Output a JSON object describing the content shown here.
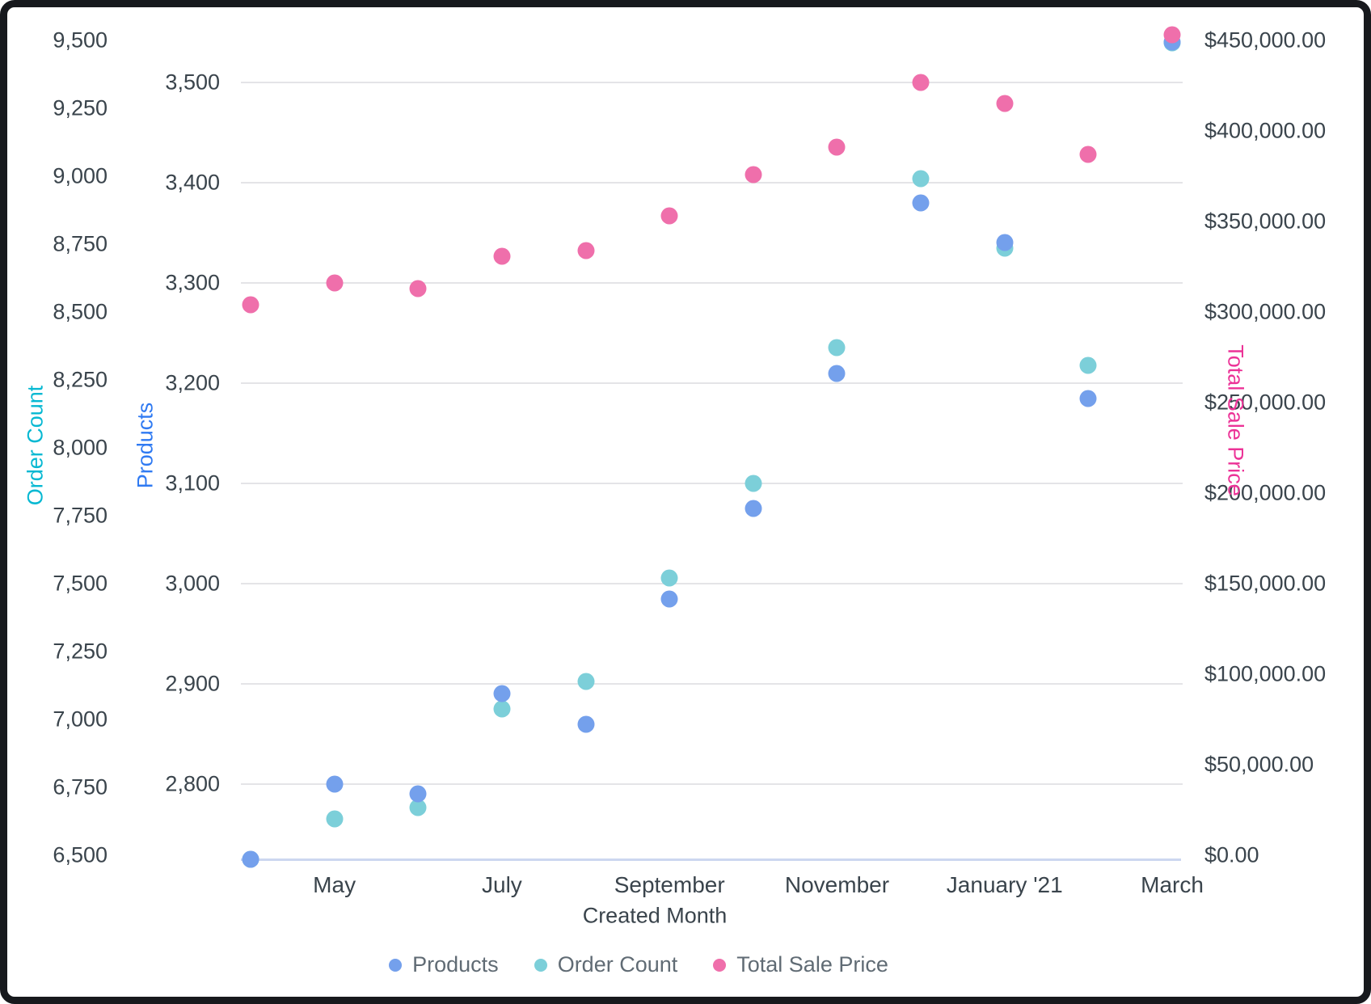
{
  "chart_data": {
    "type": "scatter",
    "x_axis": {
      "title": "Created Month",
      "tick_labels": [
        "May",
        "July",
        "September",
        "November",
        "January '21",
        "March"
      ],
      "tick_positions": [
        2,
        4,
        6,
        8,
        10,
        12
      ],
      "n_points": 12
    },
    "axes": {
      "order_count": {
        "title": "Order Count",
        "title_color": "#06b8d2",
        "tick_labels": [
          "9,500",
          "9,250",
          "9,000",
          "8,750",
          "8,500",
          "8,250",
          "8,000",
          "7,750",
          "7,500",
          "7,250",
          "7,000",
          "6,750",
          "6,500"
        ],
        "tick_values": [
          9500,
          9250,
          9000,
          8750,
          8500,
          8250,
          8000,
          7750,
          7500,
          7250,
          7000,
          6750,
          6500
        ],
        "range": [
          6500,
          9500
        ],
        "side": "outer-left"
      },
      "products": {
        "title": "Products",
        "title_color": "#2f7af2",
        "tick_labels": [
          "3,500",
          "3,400",
          "3,300",
          "3,200",
          "3,100",
          "3,000",
          "2,900",
          "2,800"
        ],
        "tick_values": [
          3500,
          3400,
          3300,
          3200,
          3100,
          3000,
          2900,
          2800
        ],
        "range": [
          2720,
          3545
        ],
        "gridlines": true,
        "side": "inner-left"
      },
      "total_sale_price": {
        "title": "Total Sale Price",
        "title_color": "#ec3397",
        "tick_labels": [
          "$450,000.00",
          "$400,000.00",
          "$350,000.00",
          "$300,000.00",
          "$250,000.00",
          "$200,000.00",
          "$150,000.00",
          "$100,000.00",
          "$50,000.00",
          "$0.00"
        ],
        "tick_values": [
          450000,
          400000,
          350000,
          300000,
          250000,
          200000,
          150000,
          100000,
          50000,
          0
        ],
        "range": [
          0,
          455000
        ],
        "side": "right"
      }
    },
    "series": [
      {
        "name": "Products",
        "axis": "products",
        "color": "#74a0ec",
        "values": [
          2725,
          2800,
          2790,
          2890,
          2860,
          2985,
          3075,
          3210,
          3380,
          3340,
          3185,
          3540
        ]
      },
      {
        "name": "Order Count",
        "axis": "order_count",
        "color": "#7ccfd9",
        "values": [
          6485,
          6635,
          6675,
          7040,
          7140,
          7520,
          7870,
          8370,
          8990,
          8735,
          8305,
          9490
        ]
      },
      {
        "name": "Total Sale Price",
        "axis": "total_sale_price",
        "color": "#ef6fab",
        "values": [
          304000,
          316000,
          313000,
          331000,
          334000,
          353000,
          376000,
          391000,
          427000,
          415000,
          387000,
          453000
        ]
      }
    ],
    "legend": {
      "position": "bottom",
      "items": [
        {
          "label": "Products",
          "color": "#74a0ec"
        },
        {
          "label": "Order Count",
          "color": "#7ccfd9"
        },
        {
          "label": "Total Sale Price",
          "color": "#ef6fab"
        }
      ]
    }
  }
}
